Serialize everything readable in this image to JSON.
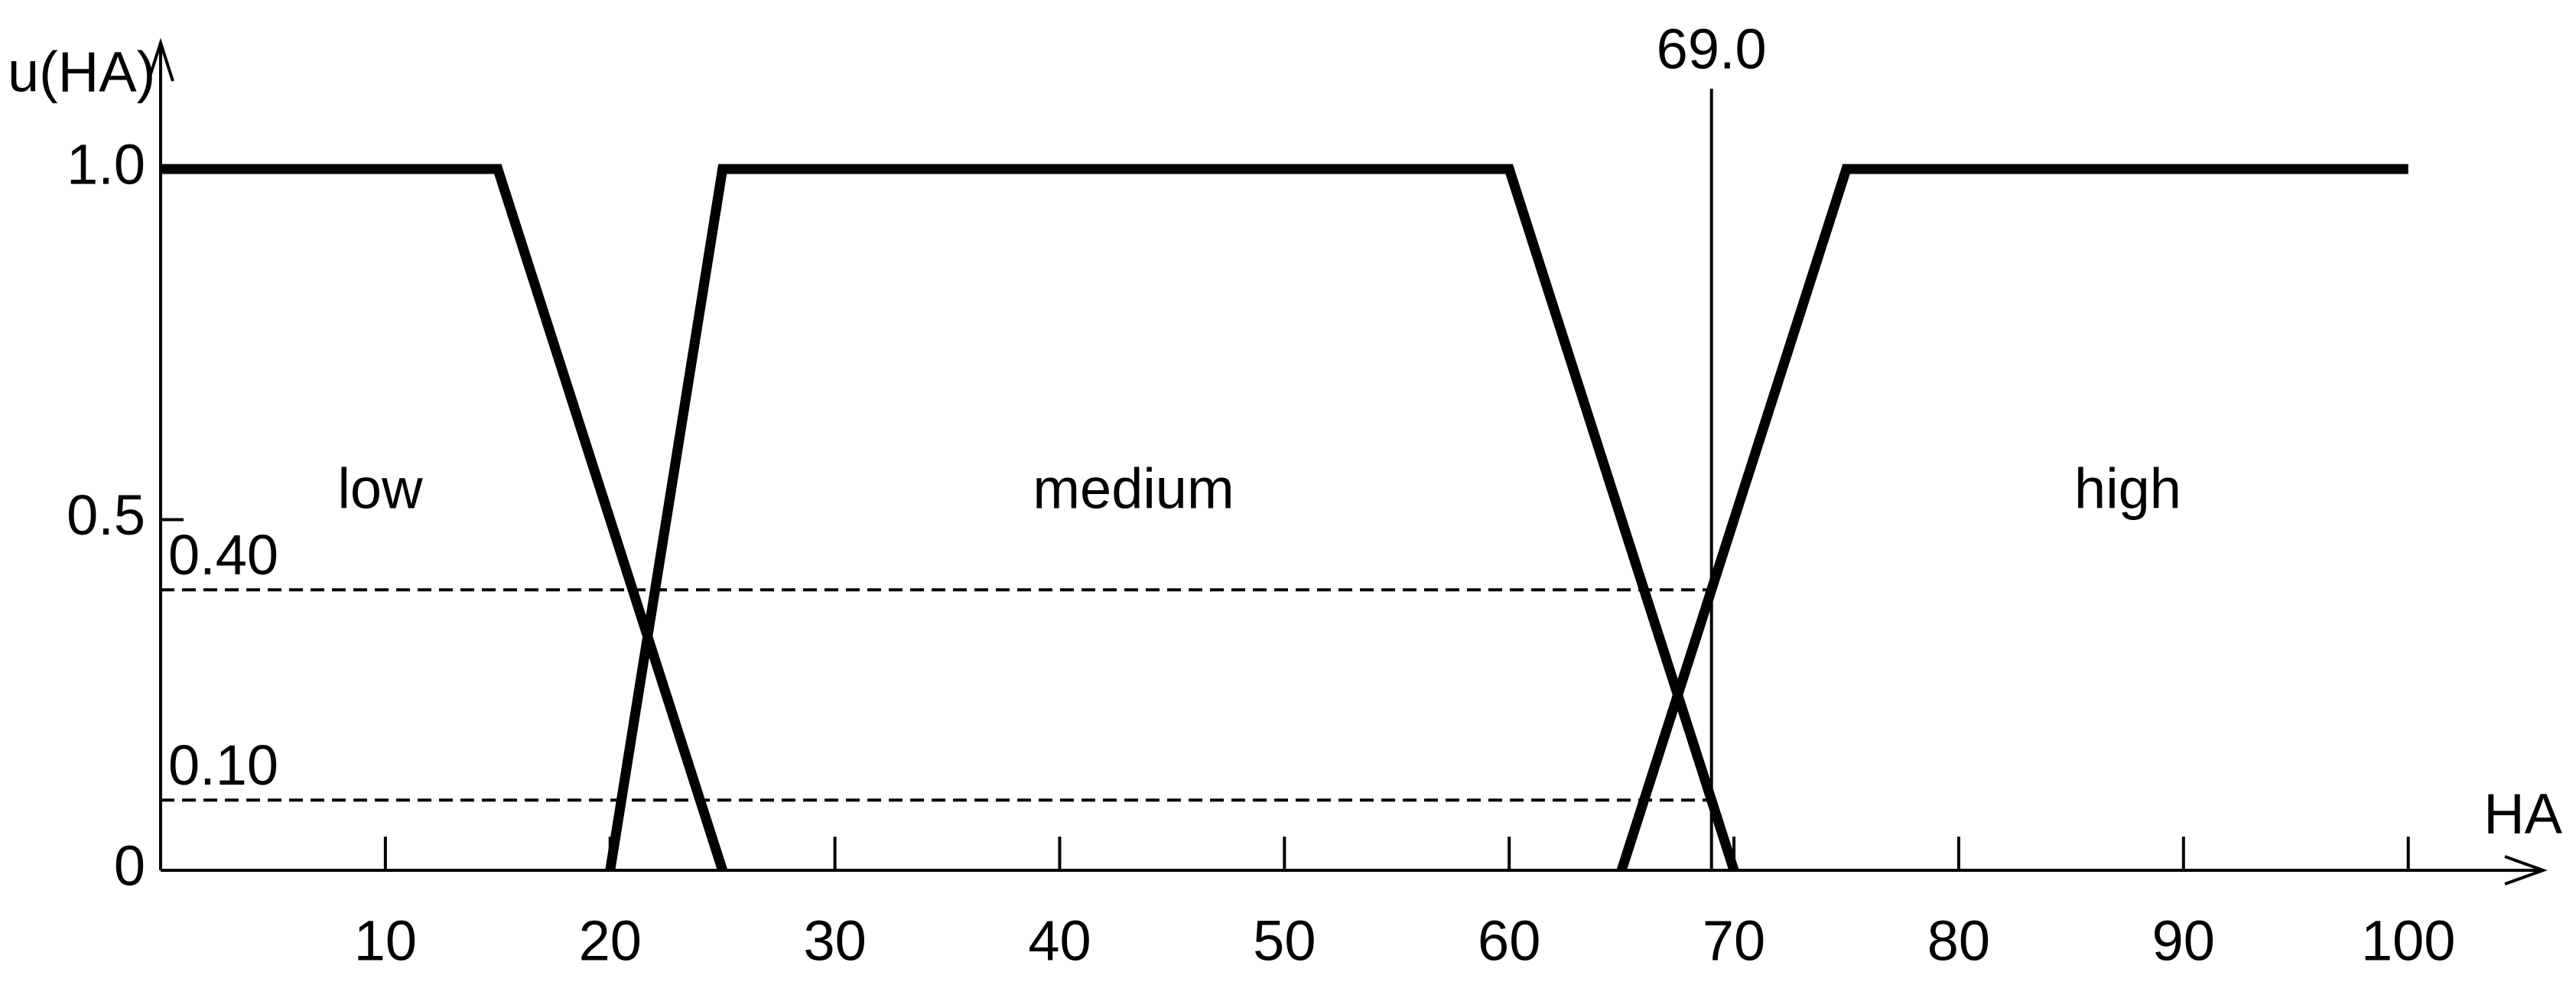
{
  "chart_data": {
    "type": "line",
    "y_label": "u(HA)",
    "x_label": "HA",
    "xlim": [
      0,
      106
    ],
    "ylim": [
      0,
      1.18
    ],
    "xticks": [
      10,
      20,
      30,
      40,
      50,
      60,
      70,
      80,
      90,
      100
    ],
    "yticks": [
      0,
      0.5,
      {
        "value": 1,
        "label": "1.0"
      }
    ],
    "series": [
      {
        "name": "low",
        "color": "#000000",
        "x": [
          0,
          15,
          25
        ],
        "values": [
          1,
          1,
          0
        ]
      },
      {
        "name": "medium",
        "color": "#000000",
        "x": [
          20,
          25,
          60,
          70
        ],
        "values": [
          0,
          1,
          1,
          0
        ]
      },
      {
        "name": "high",
        "color": "#000000",
        "x": [
          65,
          75,
          100
        ],
        "values": [
          0,
          1,
          1
        ]
      }
    ],
    "hlines": [
      {
        "value": 0.4,
        "label": "0.40"
      },
      {
        "value": 0.1,
        "label": "0.10"
      }
    ],
    "vline": {
      "value": 69,
      "label": "69.0"
    }
  }
}
